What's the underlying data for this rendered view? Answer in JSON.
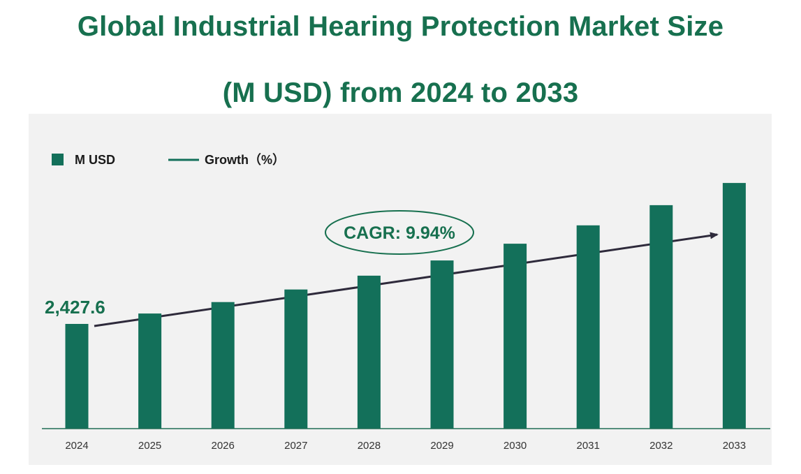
{
  "title": {
    "line1": "Global Industrial Hearing Protection Market Size",
    "line2": "(M USD) from 2024 to 2033"
  },
  "legend": {
    "bar_label": "M USD",
    "line_label": "Growth（%）"
  },
  "cagr_label": "CAGR:  9.94%",
  "colors": {
    "bar": "#13705a",
    "title": "#17704f",
    "arrow": "#2e2a3b",
    "panel": "#f2f2f2"
  },
  "chart_data": {
    "type": "bar",
    "title": "Global Industrial Hearing Protection Market Size (M USD) from 2024 to 2033",
    "categories": [
      "2024",
      "2025",
      "2026",
      "2027",
      "2028",
      "2029",
      "2030",
      "2031",
      "2032",
      "2033"
    ],
    "series": [
      {
        "name": "M USD",
        "values": [
          2427.6,
          2669,
          2934,
          3226,
          3547,
          3899,
          4287,
          4713,
          5181,
          5696
        ]
      }
    ],
    "data_labels": [
      "2,427.6",
      "",
      "",
      "",
      "",
      "",
      "",
      "",
      "",
      ""
    ],
    "annotation": "CAGR:  9.94%",
    "trend_arrow": true,
    "grid": false,
    "legend_position": "top-left",
    "ylim": [
      0,
      7300
    ]
  }
}
